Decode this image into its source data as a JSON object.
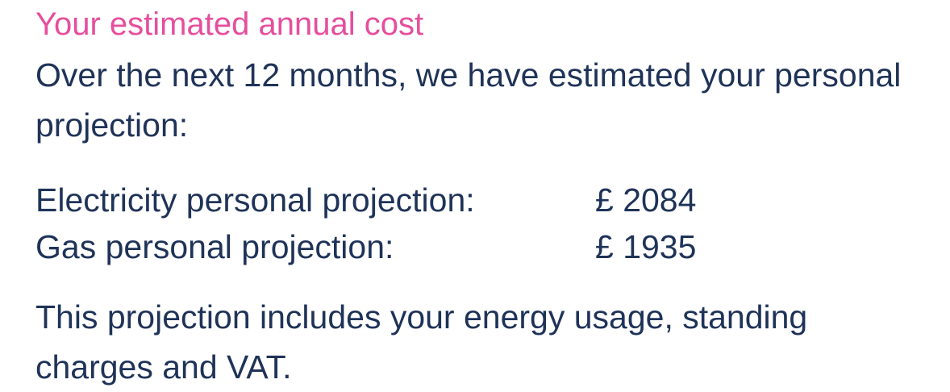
{
  "heading": "Your estimated annual cost",
  "intro": "Over the next 12 months, we have estimated your personal projection:",
  "projections": [
    {
      "label": "Electricity personal projection:",
      "value": "£ 2084"
    },
    {
      "label": "Gas personal projection:",
      "value": "£ 1935"
    }
  ],
  "note": "This projection includes your energy usage, standing charges and VAT.",
  "colors": {
    "heading": "#e64e9c",
    "body_text": "#1f3358",
    "background": "#ffffff"
  }
}
